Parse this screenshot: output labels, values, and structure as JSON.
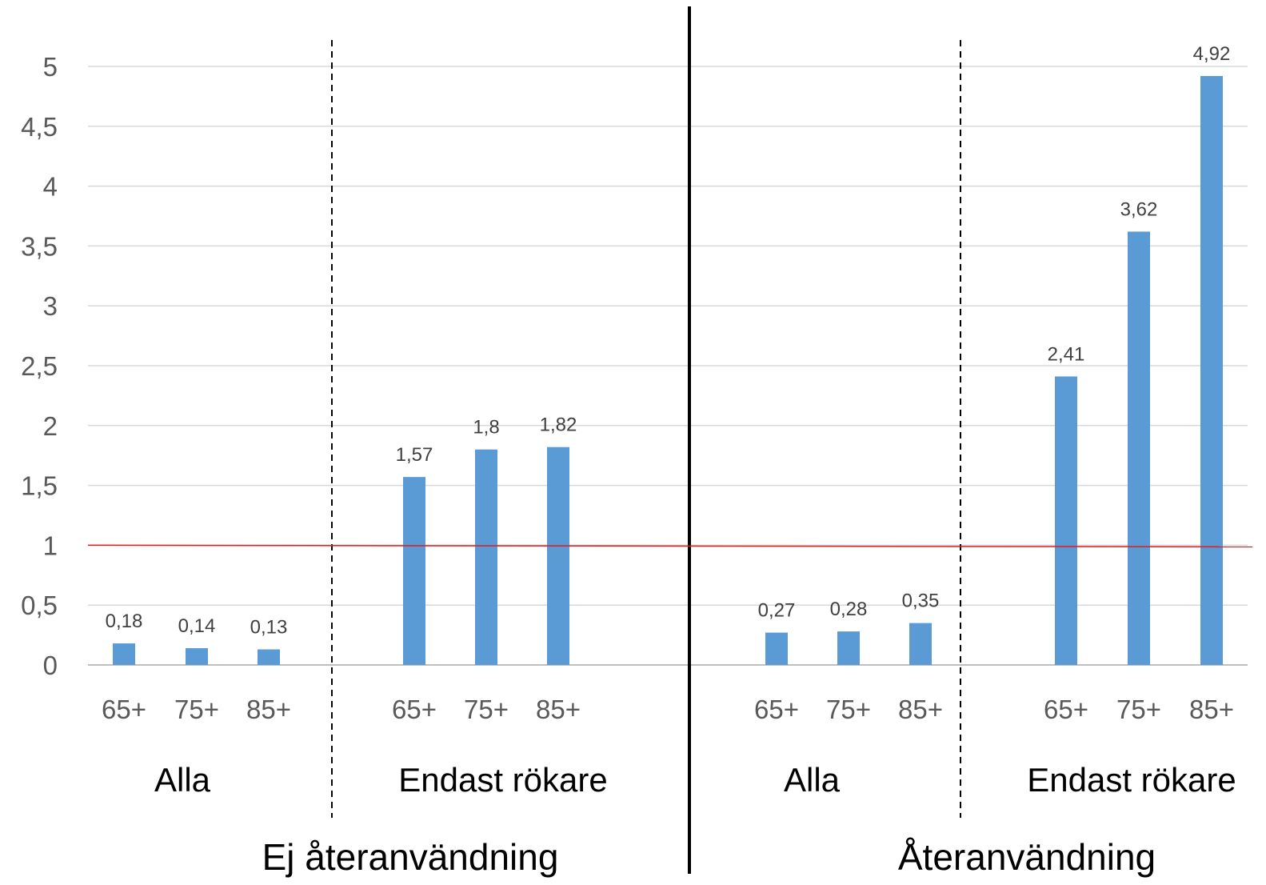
{
  "chart_data": {
    "type": "bar",
    "ylim": [
      0,
      5
    ],
    "y_ticks": [
      "0",
      "0,5",
      "1",
      "1,5",
      "2",
      "2,5",
      "3",
      "3,5",
      "4",
      "4,5",
      "5"
    ],
    "y_tick_values": [
      0,
      0.5,
      1,
      1.5,
      2,
      2.5,
      3,
      3.5,
      4,
      4.5,
      5
    ],
    "grid": true,
    "reference_line": {
      "value": 1,
      "color": "#e31a1c"
    },
    "bar_color": "#5b9bd5",
    "sections": [
      {
        "label": "Ej återanvändning",
        "groups": [
          {
            "label": "Alla",
            "categories": [
              "65+",
              "75+",
              "85+"
            ],
            "values": [
              0.18,
              0.14,
              0.13
            ],
            "value_labels": [
              "0,18",
              "0,14",
              "0,13"
            ]
          },
          {
            "label": "Endast rökare",
            "categories": [
              "65+",
              "75+",
              "85+"
            ],
            "values": [
              1.57,
              1.8,
              1.82
            ],
            "value_labels": [
              "1,57",
              "1,8",
              "1,82"
            ]
          }
        ]
      },
      {
        "label": "Återanvändning",
        "groups": [
          {
            "label": "Alla",
            "categories": [
              "65+",
              "75+",
              "85+"
            ],
            "values": [
              0.27,
              0.28,
              0.35
            ],
            "value_labels": [
              "0,27",
              "0,28",
              "0,35"
            ]
          },
          {
            "label": "Endast rökare",
            "categories": [
              "65+",
              "75+",
              "85+"
            ],
            "values": [
              2.41,
              3.62,
              4.92
            ],
            "value_labels": [
              "2,41",
              "3,62",
              "4,92"
            ]
          }
        ]
      }
    ]
  }
}
